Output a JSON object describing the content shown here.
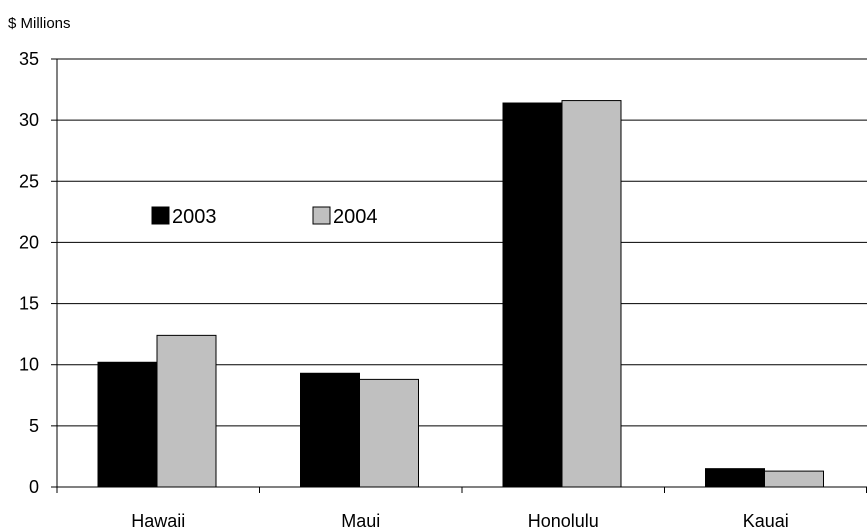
{
  "chart_data": {
    "type": "bar",
    "unit_label": "$ Millions",
    "categories": [
      "Hawaii",
      "Maui",
      "Honolulu",
      "Kauai"
    ],
    "series": [
      {
        "name": "2003",
        "values": [
          10.2,
          9.3,
          31.4,
          1.5
        ],
        "color": "#000000"
      },
      {
        "name": "2004",
        "values": [
          12.4,
          8.8,
          31.6,
          1.3
        ],
        "color": "#c0c0c0"
      }
    ],
    "ylim": [
      0,
      35
    ],
    "yticks": [
      0,
      5,
      10,
      15,
      20,
      25,
      30,
      35
    ],
    "grid": true,
    "legend_position": "upper-left"
  }
}
